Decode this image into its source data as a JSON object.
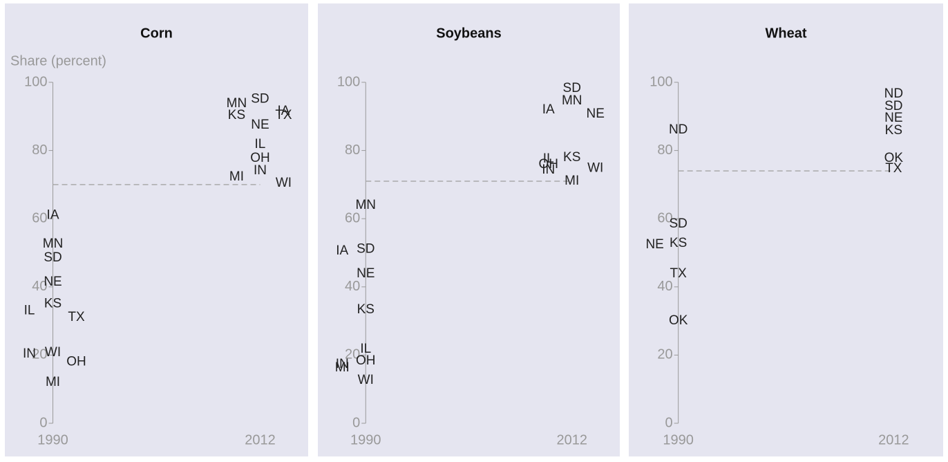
{
  "chart_data": [
    {
      "type": "scatter",
      "title": "Corn",
      "y_label": "Share (percent)",
      "xlim": [
        1986,
        2016
      ],
      "xticks": [
        1990,
        2012
      ],
      "ylim": [
        0,
        100
      ],
      "yticks": [
        0,
        20,
        40,
        60,
        80,
        100
      ],
      "reference": 70,
      "reference_color": "#aaaaaa",
      "labels": [
        "IA",
        "MN",
        "SD",
        "NE",
        "KS",
        "IL",
        "TX",
        "WI",
        "IN",
        "OH",
        "MI",
        "SD",
        "MN",
        "IA",
        "TX",
        "KS",
        "NE",
        "IL",
        "OH",
        "IN",
        "MI",
        "WI"
      ],
      "x": [
        1990,
        1990,
        1990,
        1990,
        1990,
        1990,
        1990,
        1990,
        1990,
        1990,
        1990,
        2012,
        2012,
        2012,
        2012,
        2012,
        2012,
        2012,
        2012,
        2012,
        2012,
        2012
      ],
      "values": [
        61,
        52.5,
        48.5,
        41.4,
        35,
        33,
        31,
        20.7,
        20.3,
        18,
        12,
        95,
        93.7,
        91.5,
        90.3,
        90.3,
        87.4,
        81.7,
        77.7,
        74,
        72.2,
        70.4
      ]
    },
    {
      "type": "scatter",
      "title": "Soybeans",
      "xlim": [
        1986,
        2016
      ],
      "xticks": [
        1990,
        2012
      ],
      "ylim": [
        0,
        100
      ],
      "yticks": [
        0,
        20,
        40,
        60,
        80,
        100
      ],
      "reference": 71,
      "reference_color": "#aaaaaa",
      "labels": [
        "MN",
        "SD",
        "IA",
        "NE",
        "KS",
        "IL",
        "OH",
        "IN",
        "MI",
        "WI",
        "SD",
        "MN",
        "IA",
        "NE",
        "KS",
        "IL",
        "OH",
        "WI",
        "IN",
        "MI"
      ],
      "x": [
        1990,
        1990,
        1990,
        1990,
        1990,
        1990,
        1990,
        1990,
        1990,
        1990,
        2012,
        2012,
        2012,
        2012,
        2012,
        2012,
        2012,
        2012,
        2012,
        2012
      ],
      "values": [
        63.9,
        51,
        50.5,
        43.8,
        33.3,
        21.7,
        18.3,
        17.2,
        16.2,
        12.6,
        98.2,
        94.5,
        91.9,
        90.7,
        77.9,
        77.5,
        75.9,
        74.8,
        74.2,
        71
      ]
    },
    {
      "type": "scatter",
      "title": "Wheat",
      "xlim": [
        1986,
        2016
      ],
      "xticks": [
        1990,
        2012
      ],
      "ylim": [
        0,
        100
      ],
      "yticks": [
        0,
        20,
        40,
        60,
        80,
        100
      ],
      "reference": 74,
      "reference_color": "#aaaaaa",
      "labels": [
        "ND",
        "SD",
        "KS",
        "NE",
        "TX",
        "OK",
        "ND",
        "SD",
        "NE",
        "KS",
        "OK",
        "TX"
      ],
      "x": [
        1990,
        1990,
        1990,
        1990,
        1990,
        1990,
        2012,
        2012,
        2012,
        2012,
        2012,
        2012
      ],
      "values": [
        86,
        58.4,
        52.7,
        52.3,
        43.8,
        30,
        96.6,
        92.9,
        89.5,
        85.8,
        77.7,
        74.6
      ]
    }
  ]
}
